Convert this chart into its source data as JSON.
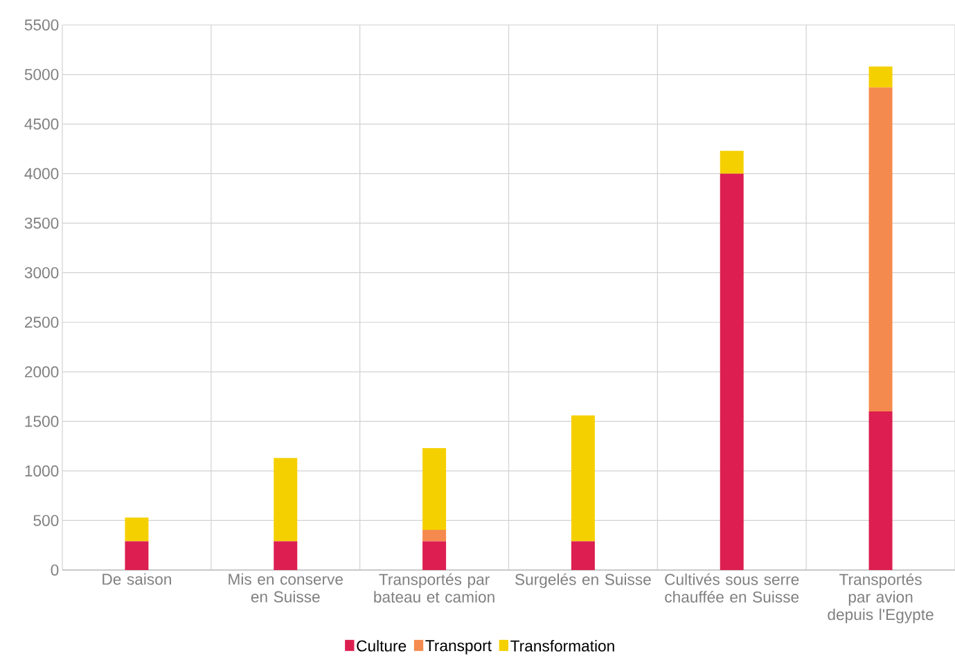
{
  "chart_data": {
    "type": "bar",
    "stacked": true,
    "categories": [
      "De saison",
      "Mis en conserve en Suisse",
      "Transportés par bateau et camion",
      "Surgelés en Suisse",
      "Cultivés sous serre chauffée en Suisse",
      "Transportés par avion depuis l'Egypte"
    ],
    "series": [
      {
        "name": "Culture",
        "color": "#dc1f50",
        "values": [
          290,
          290,
          290,
          290,
          4000,
          1600
        ]
      },
      {
        "name": "Transport",
        "color": "#f58a4e",
        "values": [
          0,
          0,
          115,
          0,
          0,
          3270
        ]
      },
      {
        "name": "Transformation",
        "color": "#f5d000",
        "values": [
          240,
          840,
          825,
          1270,
          230,
          210
        ]
      }
    ],
    "ylim": [
      0,
      5500
    ],
    "yticks": [
      0,
      500,
      1000,
      1500,
      2000,
      2500,
      3000,
      3500,
      4000,
      4500,
      5000,
      5500
    ],
    "grid": true,
    "legend": "bottom"
  }
}
